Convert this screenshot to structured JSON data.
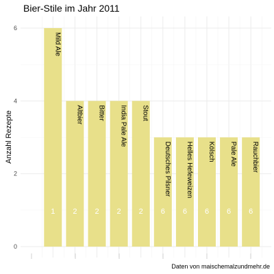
{
  "chart_data": {
    "type": "bar",
    "title": "Bier-Stile im Jahr 2011",
    "xlabel": "",
    "ylabel": "Anzahl Rezepte",
    "caption": "Daten von maischemalzundmehr.de",
    "ylim": [
      0,
      6.3
    ],
    "yticks": [
      0,
      2,
      4,
      6
    ],
    "grid": true,
    "bar_color": "#e8e08a",
    "categories": [
      "Mild Ale",
      "Altbier",
      "Bitter",
      "India Pale Ale",
      "Stout",
      "Deutsches Pilsner",
      "Helles Hefeweizen",
      "Kölsch",
      "Pale Ale",
      "Rauchbier"
    ],
    "values": [
      6,
      4,
      4,
      4,
      4,
      3,
      3,
      3,
      3,
      3
    ],
    "inner_labels": [
      "1",
      "2",
      "2",
      "2",
      "2",
      "6",
      "6",
      "6",
      "6",
      "6"
    ]
  }
}
